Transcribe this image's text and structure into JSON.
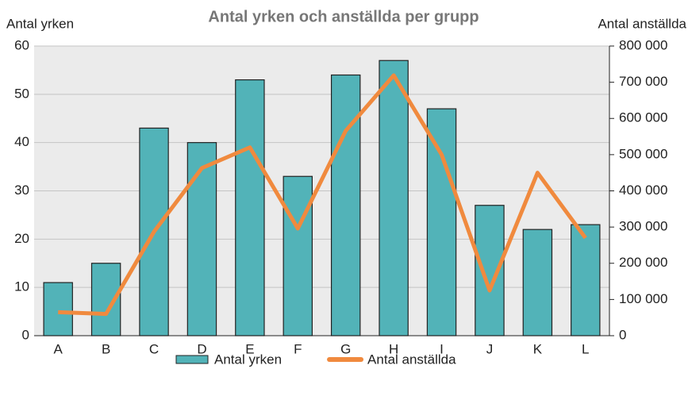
{
  "chart_data": {
    "type": "bar",
    "title": "Antal yrken och anställda per grupp",
    "y_label": "Antal yrken",
    "y2_label": "Antal anställda",
    "categories": [
      "A",
      "B",
      "C",
      "D",
      "E",
      "F",
      "G",
      "H",
      "I",
      "J",
      "K",
      "L"
    ],
    "series": [
      {
        "name": "Antal yrken",
        "type": "bar",
        "color": "#52b3b8",
        "values": [
          11,
          15,
          43,
          40,
          53,
          33,
          54,
          57,
          47,
          27,
          22,
          23
        ]
      },
      {
        "name": "Antal anställda",
        "type": "line",
        "axis": "y2",
        "color": "#f08a3e",
        "values": [
          65000,
          60000,
          287000,
          463000,
          520000,
          296000,
          566000,
          719000,
          500000,
          125000,
          450000,
          270000
        ]
      }
    ],
    "ylim": [
      0,
      60
    ],
    "yticks": [
      0,
      10,
      20,
      30,
      40,
      50,
      60
    ],
    "y2lim": [
      0,
      800000
    ],
    "y2ticks": [
      0,
      {
        "value": 100000,
        "label": "100 000"
      },
      {
        "value": 200000,
        "label": "200 000"
      },
      {
        "value": 300000,
        "label": "300 000"
      },
      {
        "value": 400000,
        "label": "400 000"
      },
      {
        "value": 500000,
        "label": "500 000"
      },
      {
        "value": 600000,
        "label": "600 000"
      },
      {
        "value": 700000,
        "label": "700 000"
      },
      {
        "value": 800000,
        "label": "800 000"
      }
    ],
    "grid": true
  }
}
